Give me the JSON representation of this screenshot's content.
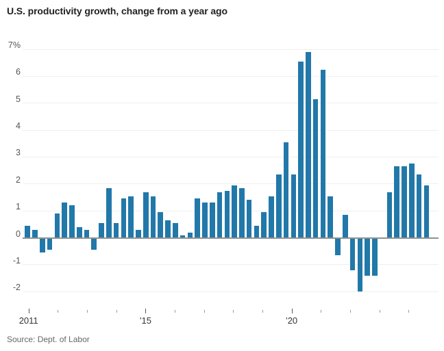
{
  "title": "U.S. productivity growth, change from a year ago",
  "source": "Source: Dept. of Labor",
  "chart_data": {
    "type": "bar",
    "title": "U.S. productivity growth, change from a year ago",
    "source": "Source: Dept. of Labor",
    "bar_color": "#2178a9",
    "grid": "horizontal",
    "legend": "none",
    "ylim": [
      -2,
      7
    ],
    "ytick_values": [
      7,
      6,
      5,
      4,
      3,
      2,
      1,
      0,
      -1,
      -2
    ],
    "ytick_labels": [
      "7%",
      "6",
      "5",
      "4",
      "3",
      "2",
      "1",
      "0",
      "-1",
      "-2"
    ],
    "xticks": [
      {
        "year": 2011,
        "label": "2011",
        "major": true
      },
      {
        "year": 2012,
        "label": "",
        "major": false
      },
      {
        "year": 2013,
        "label": "",
        "major": false
      },
      {
        "year": 2014,
        "label": "",
        "major": false
      },
      {
        "year": 2015,
        "label": "’15",
        "major": true
      },
      {
        "year": 2016,
        "label": "",
        "major": false
      },
      {
        "year": 2017,
        "label": "",
        "major": false
      },
      {
        "year": 2018,
        "label": "",
        "major": false
      },
      {
        "year": 2019,
        "label": "",
        "major": false
      },
      {
        "year": 2020,
        "label": "’20",
        "major": true
      },
      {
        "year": 2021,
        "label": "",
        "major": false
      },
      {
        "year": 2022,
        "label": "",
        "major": false
      },
      {
        "year": 2023,
        "label": "",
        "major": false
      },
      {
        "year": 2024,
        "label": "",
        "major": false
      }
    ],
    "x": [
      "2011 Q1",
      "2011 Q2",
      "2011 Q3",
      "2011 Q4",
      "2012 Q1",
      "2012 Q2",
      "2012 Q3",
      "2012 Q4",
      "2013 Q1",
      "2013 Q2",
      "2013 Q3",
      "2013 Q4",
      "2014 Q1",
      "2014 Q2",
      "2014 Q3",
      "2014 Q4",
      "2015 Q1",
      "2015 Q2",
      "2015 Q3",
      "2015 Q4",
      "2016 Q1",
      "2016 Q2",
      "2016 Q3",
      "2016 Q4",
      "2017 Q1",
      "2017 Q2",
      "2017 Q3",
      "2017 Q4",
      "2018 Q1",
      "2018 Q2",
      "2018 Q3",
      "2018 Q4",
      "2019 Q1",
      "2019 Q2",
      "2019 Q3",
      "2019 Q4",
      "2020 Q1",
      "2020 Q2",
      "2020 Q3",
      "2020 Q4",
      "2021 Q1",
      "2021 Q2",
      "2021 Q3",
      "2021 Q4",
      "2022 Q1",
      "2022 Q2",
      "2022 Q3",
      "2022 Q4",
      "2023 Q1",
      "2023 Q2",
      "2023 Q3",
      "2023 Q4",
      "2024 Q1",
      "2024 Q2",
      "2024 Q3"
    ],
    "values": [
      0.45,
      0.3,
      -0.55,
      -0.45,
      0.9,
      1.3,
      1.2,
      0.4,
      0.3,
      -0.45,
      0.55,
      1.85,
      0.55,
      1.45,
      1.55,
      0.3,
      1.7,
      1.55,
      0.95,
      0.65,
      0.55,
      0.1,
      0.2,
      1.45,
      1.3,
      1.3,
      1.7,
      1.75,
      1.95,
      1.85,
      1.4,
      0.45,
      0.95,
      1.55,
      2.35,
      3.55,
      2.35,
      6.55,
      6.9,
      5.15,
      6.25,
      1.55,
      -0.65,
      0.85,
      -1.2,
      -2.0,
      -1.4,
      -1.4,
      null,
      1.7,
      2.65,
      2.65,
      2.75,
      2.35,
      1.95
    ]
  }
}
